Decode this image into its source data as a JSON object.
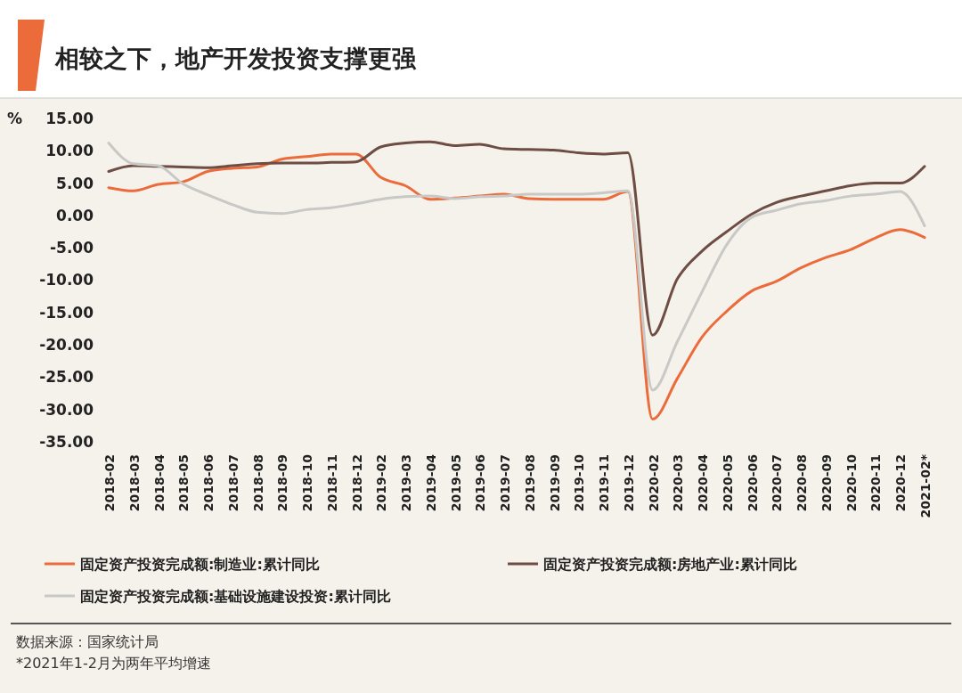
{
  "chart_data": {
    "type": "line",
    "title": "相较之下，地产开发投资支撑更强",
    "ylabel": "%",
    "categories": [
      "2018-02",
      "2018-03",
      "2018-04",
      "2018-05",
      "2018-06",
      "2018-07",
      "2018-08",
      "2018-09",
      "2018-10",
      "2018-11",
      "2018-12",
      "2019-02",
      "2019-03",
      "2019-04",
      "2019-05",
      "2019-06",
      "2019-07",
      "2019-08",
      "2019-09",
      "2019-10",
      "2019-11",
      "2019-12",
      "2020-02",
      "2020-03",
      "2020-04",
      "2020-05",
      "2020-06",
      "2020-07",
      "2020-08",
      "2020-09",
      "2020-10",
      "2020-11",
      "2020-12",
      "2021-02*"
    ],
    "series": [
      {
        "name": "固定资产投资完成额:制造业:累计同比",
        "color": "#ec6b3a",
        "values": [
          4.3,
          3.8,
          4.8,
          5.2,
          6.8,
          7.3,
          7.5,
          8.7,
          9.1,
          9.5,
          9.5,
          5.9,
          4.6,
          2.5,
          2.7,
          3.0,
          3.3,
          2.6,
          2.5,
          2.5,
          2.5,
          3.7,
          -31.5,
          -25.2,
          -18.8,
          -14.8,
          -11.7,
          -10.2,
          -8.1,
          -6.5,
          -5.3,
          -3.5,
          -2.2,
          -3.4
        ]
      },
      {
        "name": "固定资产投资完成额:房地产业:累计同比",
        "color": "#6e4d44",
        "values": [
          6.8,
          7.7,
          7.6,
          7.5,
          7.4,
          7.7,
          8.0,
          8.1,
          8.1,
          8.2,
          8.3,
          10.6,
          11.2,
          11.4,
          10.8,
          11.0,
          10.3,
          10.2,
          10.1,
          9.7,
          9.5,
          9.7,
          -18.5,
          -9.8,
          -5.5,
          -2.5,
          0.2,
          2.0,
          3.0,
          3.8,
          4.6,
          5.0,
          5.0,
          7.6
        ]
      },
      {
        "name": "固定资产投资完成额:基础设施建设投资:累计同比",
        "color": "#c8c8c6",
        "values": [
          11.2,
          8.0,
          7.7,
          4.9,
          3.2,
          1.7,
          0.5,
          0.3,
          0.9,
          1.2,
          1.8,
          2.5,
          2.9,
          3.0,
          2.6,
          2.9,
          3.0,
          3.3,
          3.3,
          3.3,
          3.5,
          3.8,
          -27.0,
          -19.5,
          -11.8,
          -4.5,
          -0.3,
          0.8,
          1.8,
          2.3,
          3.0,
          3.3,
          3.7,
          -1.6
        ]
      }
    ],
    "ylim": [
      -35,
      15
    ],
    "yticks": [
      {
        "value": -35,
        "label": "-35.00"
      },
      {
        "value": -30,
        "label": "-30.00"
      },
      {
        "value": -25,
        "label": "-25.00"
      },
      {
        "value": -20,
        "label": "-20.00"
      },
      {
        "value": -15,
        "label": "-15.00"
      },
      {
        "value": -10,
        "label": "-10.00"
      },
      {
        "value": -5,
        "label": "-5.00"
      },
      {
        "value": 0,
        "label": "0.00"
      },
      {
        "value": 5,
        "label": "5.00"
      },
      {
        "value": 10,
        "label": "10.00"
      },
      {
        "value": 15,
        "label": "15.00"
      }
    ],
    "grid": false,
    "legend": "bottom",
    "marker": "none",
    "line_style": "solid",
    "annotations": [
      "数据来源：国家统计局",
      "*2021年1-2月为两年平均增速"
    ]
  }
}
